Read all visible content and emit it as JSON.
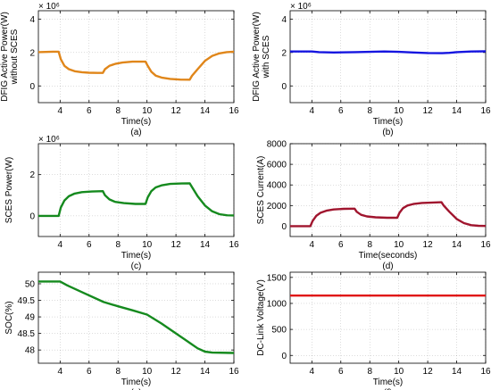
{
  "chart_data": [
    {
      "type": "line",
      "caption": "(a)",
      "xlabel": "Time(s)",
      "ylabel_lines": [
        "DFIG  Active Power(W)",
        "without SCES"
      ],
      "multiplier": "× 10⁶",
      "xlim": [
        2.5,
        16
      ],
      "ylim": [
        -1,
        4.5
      ],
      "xticks": [
        "4",
        "6",
        "8",
        "10",
        "12",
        "14",
        "16"
      ],
      "yticks": [
        "0",
        "2",
        "4"
      ],
      "xtick_values": [
        4,
        6,
        8,
        10,
        12,
        14,
        16
      ],
      "ytick_values": [
        0,
        2,
        4
      ],
      "grid": true,
      "series": [
        {
          "color": "#E0861A",
          "points": [
            [
              2.5,
              2.02
            ],
            [
              3.5,
              2.05
            ],
            [
              3.9,
              2.05
            ],
            [
              4.05,
              1.6
            ],
            [
              4.3,
              1.2
            ],
            [
              4.6,
              1.0
            ],
            [
              5.0,
              0.88
            ],
            [
              5.5,
              0.82
            ],
            [
              6.0,
              0.79
            ],
            [
              6.6,
              0.78
            ],
            [
              6.95,
              0.78
            ],
            [
              7.1,
              1.0
            ],
            [
              7.4,
              1.2
            ],
            [
              7.8,
              1.32
            ],
            [
              8.3,
              1.4
            ],
            [
              9.0,
              1.45
            ],
            [
              9.9,
              1.45
            ],
            [
              10.05,
              1.2
            ],
            [
              10.3,
              0.85
            ],
            [
              10.6,
              0.62
            ],
            [
              11.0,
              0.5
            ],
            [
              11.6,
              0.42
            ],
            [
              12.3,
              0.38
            ],
            [
              12.95,
              0.37
            ],
            [
              13.1,
              0.6
            ],
            [
              13.5,
              1.0
            ],
            [
              14.0,
              1.5
            ],
            [
              14.5,
              1.8
            ],
            [
              15.0,
              1.95
            ],
            [
              15.5,
              2.02
            ],
            [
              16,
              2.05
            ]
          ]
        }
      ]
    },
    {
      "type": "line",
      "caption": "(b)",
      "xlabel": "Time(s)",
      "ylabel_lines": [
        "DFIG Active Power(W)",
        "with SCES"
      ],
      "multiplier": "× 10⁶",
      "xlim": [
        2.5,
        16
      ],
      "ylim": [
        -1,
        4.5
      ],
      "xticks": [
        "4",
        "6",
        "8",
        "10",
        "12",
        "14",
        "16"
      ],
      "yticks": [
        "0",
        "2",
        "4"
      ],
      "xtick_values": [
        4,
        6,
        8,
        10,
        12,
        14,
        16
      ],
      "ytick_values": [
        0,
        2,
        4
      ],
      "grid": true,
      "series": [
        {
          "color": "#1515E0",
          "points": [
            [
              2.5,
              2.06
            ],
            [
              4,
              2.06
            ],
            [
              4.5,
              2.02
            ],
            [
              5.5,
              2.0
            ],
            [
              7,
              2.02
            ],
            [
              8,
              2.04
            ],
            [
              9,
              2.06
            ],
            [
              10,
              2.04
            ],
            [
              11,
              2.0
            ],
            [
              12,
              1.97
            ],
            [
              13,
              1.96
            ],
            [
              13.5,
              1.98
            ],
            [
              14,
              2.02
            ],
            [
              15,
              2.06
            ],
            [
              16,
              2.07
            ]
          ]
        }
      ]
    },
    {
      "type": "line",
      "caption": "(c)",
      "xlabel": "Time(s)",
      "ylabel_lines": [
        "SCES Power(W)"
      ],
      "multiplier": "× 10⁶",
      "xlim": [
        2.5,
        16
      ],
      "ylim": [
        -1,
        3.5
      ],
      "xticks": [
        "4",
        "6",
        "8",
        "10",
        "12",
        "14",
        "16"
      ],
      "yticks": [
        "0",
        "2"
      ],
      "xtick_values": [
        4,
        6,
        8,
        10,
        12,
        14,
        16
      ],
      "ytick_values": [
        0,
        2
      ],
      "grid": true,
      "series": [
        {
          "color": "#158A1E",
          "points": [
            [
              2.5,
              0.0
            ],
            [
              3.9,
              0.0
            ],
            [
              4.05,
              0.4
            ],
            [
              4.3,
              0.75
            ],
            [
              4.6,
              0.95
            ],
            [
              5.0,
              1.08
            ],
            [
              5.5,
              1.15
            ],
            [
              6.2,
              1.18
            ],
            [
              6.95,
              1.2
            ],
            [
              7.1,
              1.0
            ],
            [
              7.4,
              0.8
            ],
            [
              7.8,
              0.68
            ],
            [
              8.4,
              0.62
            ],
            [
              9.2,
              0.58
            ],
            [
              9.9,
              0.58
            ],
            [
              10.05,
              0.9
            ],
            [
              10.3,
              1.2
            ],
            [
              10.6,
              1.38
            ],
            [
              11.0,
              1.48
            ],
            [
              11.6,
              1.55
            ],
            [
              12.4,
              1.57
            ],
            [
              12.95,
              1.58
            ],
            [
              13.1,
              1.4
            ],
            [
              13.5,
              0.95
            ],
            [
              14.0,
              0.5
            ],
            [
              14.5,
              0.22
            ],
            [
              15.0,
              0.08
            ],
            [
              15.5,
              0.03
            ],
            [
              16,
              0.02
            ]
          ]
        }
      ]
    },
    {
      "type": "line",
      "caption": "(d)",
      "xlabel": "Time(seconds)",
      "ylabel_lines": [
        "SCES Current(A)"
      ],
      "xlim": [
        2.5,
        16
      ],
      "ylim": [
        -1000,
        8000
      ],
      "xticks": [
        "4",
        "6",
        "8",
        "10",
        "12",
        "14",
        "16"
      ],
      "yticks": [
        "0",
        "2000",
        "4000",
        "6000",
        "8000"
      ],
      "xtick_values": [
        4,
        6,
        8,
        10,
        12,
        14,
        16
      ],
      "ytick_values": [
        0,
        2000,
        4000,
        6000,
        8000
      ],
      "grid": true,
      "series": [
        {
          "color": "#A0152E",
          "points": [
            [
              2.5,
              0
            ],
            [
              3.9,
              0
            ],
            [
              4.05,
              500
            ],
            [
              4.3,
              1000
            ],
            [
              4.6,
              1300
            ],
            [
              5.0,
              1500
            ],
            [
              5.5,
              1620
            ],
            [
              6.2,
              1680
            ],
            [
              6.95,
              1700
            ],
            [
              7.1,
              1400
            ],
            [
              7.4,
              1100
            ],
            [
              7.8,
              950
            ],
            [
              8.4,
              860
            ],
            [
              9.2,
              820
            ],
            [
              9.9,
              820
            ],
            [
              10.05,
              1300
            ],
            [
              10.3,
              1750
            ],
            [
              10.6,
              2000
            ],
            [
              11.0,
              2150
            ],
            [
              11.6,
              2250
            ],
            [
              12.4,
              2300
            ],
            [
              12.95,
              2320
            ],
            [
              13.1,
              2000
            ],
            [
              13.5,
              1400
            ],
            [
              14.0,
              700
            ],
            [
              14.5,
              300
            ],
            [
              15.0,
              100
            ],
            [
              15.5,
              40
            ],
            [
              16,
              20
            ]
          ]
        }
      ]
    },
    {
      "type": "line",
      "caption": "(e)",
      "xlabel": "Time(s)",
      "ylabel_lines": [
        "SOC(%)"
      ],
      "xlim": [
        2.5,
        16
      ],
      "ylim": [
        47.6,
        50.35
      ],
      "xticks": [
        "4",
        "6",
        "8",
        "10",
        "12",
        "14",
        "16"
      ],
      "yticks": [
        "48",
        "48.5",
        "49",
        "49.5",
        "50"
      ],
      "xtick_values": [
        4,
        6,
        8,
        10,
        12,
        14,
        16
      ],
      "ytick_values": [
        48,
        48.5,
        49,
        49.5,
        50
      ],
      "grid": true,
      "series": [
        {
          "color": "#158A1E",
          "points": [
            [
              2.5,
              50.07
            ],
            [
              4.0,
              50.07
            ],
            [
              4.5,
              49.95
            ],
            [
              5.5,
              49.75
            ],
            [
              7.0,
              49.45
            ],
            [
              8.0,
              49.32
            ],
            [
              9.0,
              49.2
            ],
            [
              10.0,
              49.07
            ],
            [
              11.0,
              48.8
            ],
            [
              12.0,
              48.5
            ],
            [
              13.0,
              48.2
            ],
            [
              13.5,
              48.05
            ],
            [
              14.0,
              47.95
            ],
            [
              14.5,
              47.92
            ],
            [
              16,
              47.91
            ]
          ]
        }
      ]
    },
    {
      "type": "line",
      "caption": "(f)",
      "xlabel": "Time(s)",
      "ylabel_lines": [
        "DC-Link Voltage(V)"
      ],
      "xlim": [
        2.5,
        16
      ],
      "ylim": [
        -150,
        1600
      ],
      "xticks": [
        "4",
        "6",
        "8",
        "10",
        "12",
        "14",
        "16"
      ],
      "yticks": [
        "0",
        "500",
        "1000",
        "1500"
      ],
      "xtick_values": [
        4,
        6,
        8,
        10,
        12,
        14,
        16
      ],
      "ytick_values": [
        0,
        500,
        1000,
        1500
      ],
      "grid": true,
      "series": [
        {
          "color": "#E01515",
          "points": [
            [
              2.5,
              1150
            ],
            [
              16,
              1150
            ]
          ]
        }
      ]
    }
  ]
}
